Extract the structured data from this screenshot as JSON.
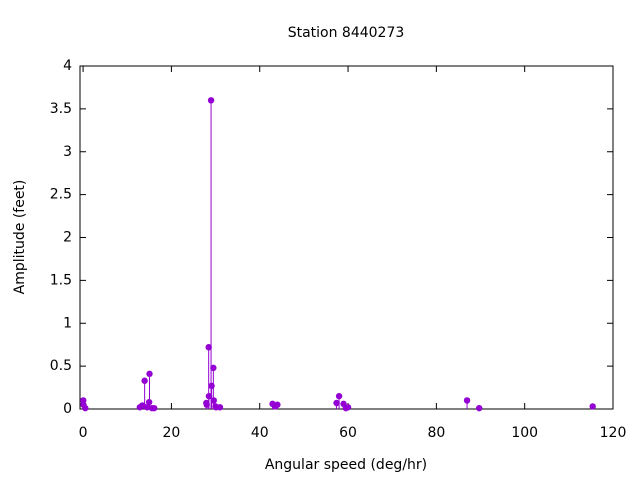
{
  "chart_data": {
    "type": "stem",
    "title": "Station 8440273",
    "x_label": "Angular speed (deg/hr)",
    "y_label": "Amplitude (feet)",
    "x": [
      0.04,
      0.08,
      0.5,
      12.85,
      13.4,
      13.5,
      13.94,
      14.5,
      14.96,
      15.04,
      15.6,
      16.1,
      27.9,
      28.0,
      28.44,
      28.5,
      28.98,
      29.1,
      29.5,
      29.6,
      30.0,
      30.1,
      31.0,
      42.9,
      43.5,
      44.0,
      57.4,
      57.97,
      58.98,
      59.5,
      60.0,
      86.95,
      89.7,
      115.4
    ],
    "values": [
      0.1,
      0.05,
      0.01,
      0.02,
      0.04,
      0.04,
      0.33,
      0.02,
      0.08,
      0.41,
      0.01,
      0.01,
      0.07,
      0.05,
      0.72,
      0.15,
      3.6,
      0.27,
      0.48,
      0.1,
      0.03,
      0.02,
      0.02,
      0.06,
      0.03,
      0.05,
      0.07,
      0.15,
      0.06,
      0.01,
      0.02,
      0.1,
      0.01,
      0.03
    ],
    "color": "#9400d3",
    "xlim": [
      -0.7,
      120
    ],
    "xticks": [
      0,
      20,
      40,
      60,
      80,
      100,
      120
    ],
    "ylim": [
      0,
      4
    ],
    "yticks": [
      0,
      0.5,
      1,
      1.5,
      2,
      2.5,
      3,
      3.5,
      4
    ]
  }
}
